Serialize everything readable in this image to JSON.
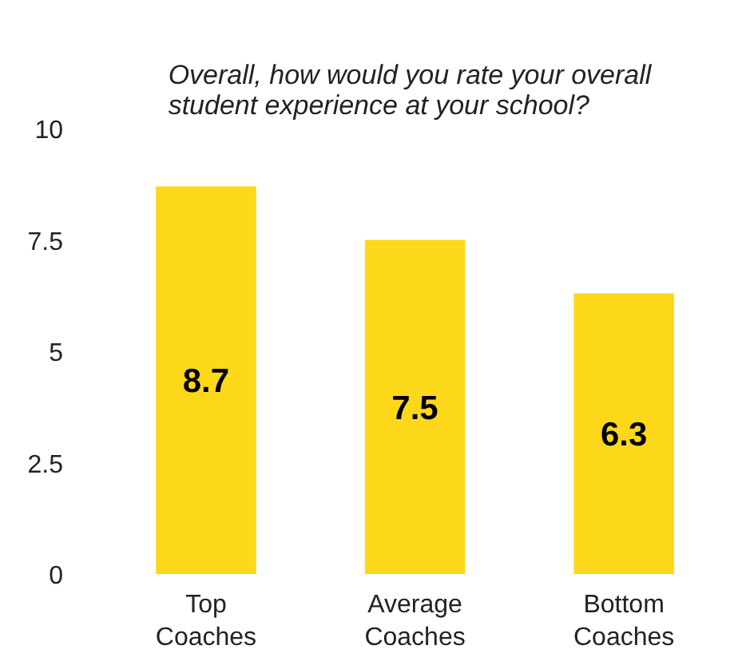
{
  "chart_data": {
    "type": "bar",
    "title": "Overall, how would you rate your overall student experience at your school?",
    "categories": [
      "Top\nCoaches",
      "Average\nCoaches",
      "Bottom\nCoaches"
    ],
    "values": [
      8.7,
      7.5,
      6.3
    ],
    "color": "#fdd81a",
    "ylim": [
      0,
      10
    ],
    "yticks": [
      0,
      2.5,
      5,
      7.5,
      10
    ],
    "grid": false,
    "data_labels": true
  }
}
